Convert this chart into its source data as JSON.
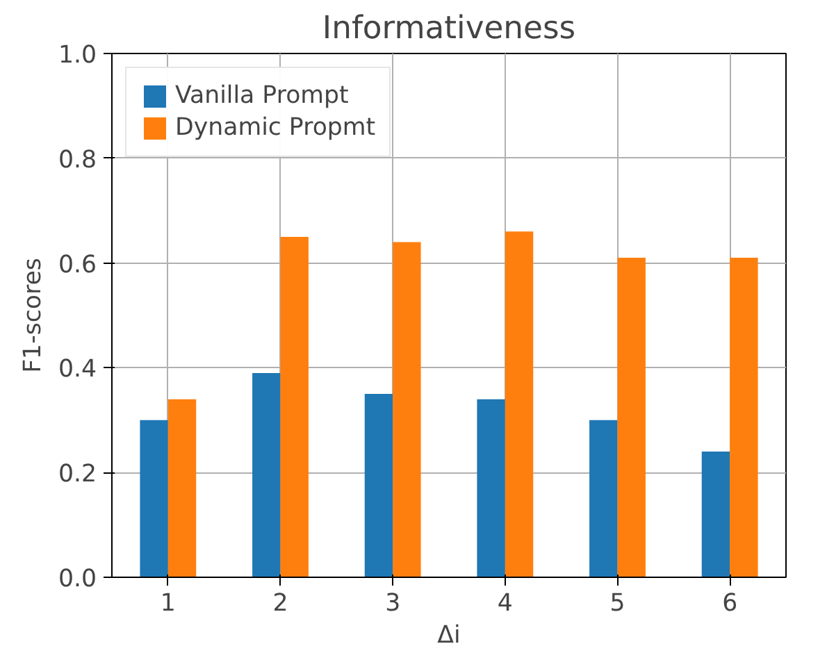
{
  "chart_data": {
    "type": "bar",
    "title": "Informativeness",
    "xlabel": "Δi",
    "ylabel": "F1-scores",
    "categories": [
      "1",
      "2",
      "3",
      "4",
      "5",
      "6"
    ],
    "series": [
      {
        "name": "Vanilla Prompt",
        "color": "#1f77b4",
        "values": [
          0.3,
          0.39,
          0.35,
          0.34,
          0.3,
          0.24
        ]
      },
      {
        "name": "Dynamic Propmt",
        "color": "#ff7f0e",
        "values": [
          0.34,
          0.65,
          0.64,
          0.66,
          0.61,
          0.61
        ]
      }
    ],
    "ylim": [
      0,
      1.0
    ],
    "yticks": [
      {
        "value": 0,
        "label": "0.0"
      },
      {
        "value": 0.2,
        "label": "0.2"
      },
      {
        "value": 0.4,
        "label": "0.4"
      },
      {
        "value": 0.6,
        "label": "0.6"
      },
      {
        "value": 0.8,
        "label": "0.8"
      },
      {
        "value": 1.0,
        "label": "1.0"
      }
    ],
    "grid": true,
    "legend": "top left"
  }
}
